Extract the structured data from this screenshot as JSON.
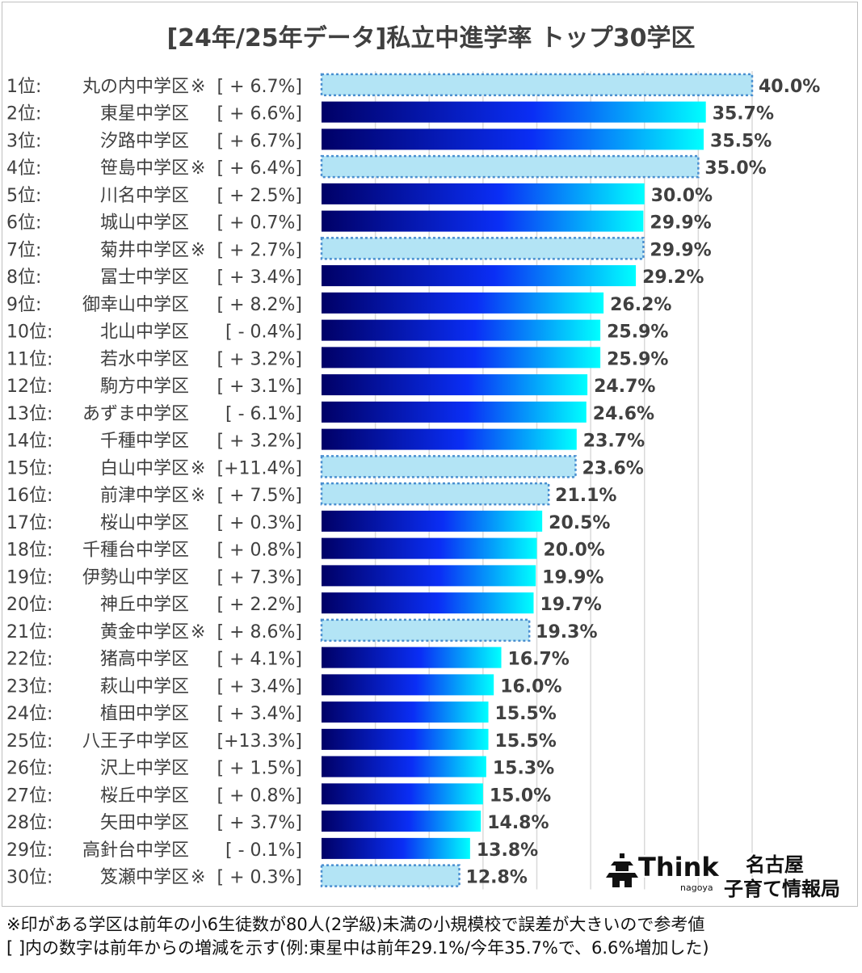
{
  "chart_data": {
    "type": "bar",
    "orientation": "horizontal",
    "title": "[24年/25年データ]私立中進学率 トップ30学区",
    "xlim": [
      0,
      40
    ],
    "grid": true,
    "value_suffix": "%",
    "rows": [
      {
        "rank": "1位:",
        "name": "丸の内中学区",
        "mark": "※",
        "change": "[ + 6.7%]",
        "value": 40.0,
        "small": true
      },
      {
        "rank": "2位:",
        "name": "東星中学区",
        "mark": "",
        "change": "[ + 6.6%]",
        "value": 35.7,
        "small": false
      },
      {
        "rank": "3位:",
        "name": "汐路中学区",
        "mark": "",
        "change": "[ + 6.7%]",
        "value": 35.5,
        "small": false
      },
      {
        "rank": "4位:",
        "name": "笹島中学区",
        "mark": "※",
        "change": "[ + 6.4%]",
        "value": 35.0,
        "small": true
      },
      {
        "rank": "5位:",
        "name": "川名中学区",
        "mark": "",
        "change": "[ + 2.5%]",
        "value": 30.0,
        "small": false
      },
      {
        "rank": "6位:",
        "name": "城山中学区",
        "mark": "",
        "change": "[ + 0.7%]",
        "value": 29.9,
        "small": false
      },
      {
        "rank": "7位:",
        "name": "菊井中学区",
        "mark": "※",
        "change": "[ + 2.7%]",
        "value": 29.9,
        "small": true
      },
      {
        "rank": "8位:",
        "name": "冨士中学区",
        "mark": "",
        "change": "[ + 3.4%]",
        "value": 29.2,
        "small": false
      },
      {
        "rank": "9位:",
        "name": "御幸山中学区",
        "mark": "",
        "change": "[ + 8.2%]",
        "value": 26.2,
        "small": false
      },
      {
        "rank": "10位:",
        "name": "北山中学区",
        "mark": "",
        "change": "[ -  0.4%]",
        "value": 25.9,
        "small": false
      },
      {
        "rank": "11位:",
        "name": "若水中学区",
        "mark": "",
        "change": "[ + 3.2%]",
        "value": 25.9,
        "small": false
      },
      {
        "rank": "12位:",
        "name": "駒方中学区",
        "mark": "",
        "change": "[ + 3.1%]",
        "value": 24.7,
        "small": false
      },
      {
        "rank": "13位:",
        "name": "あずま中学区",
        "mark": "",
        "change": "[ -  6.1%]",
        "value": 24.6,
        "small": false
      },
      {
        "rank": "14位:",
        "name": "千種中学区",
        "mark": "",
        "change": "[ + 3.2%]",
        "value": 23.7,
        "small": false
      },
      {
        "rank": "15位:",
        "name": "白山中学区",
        "mark": "※",
        "change": "[+11.4%]",
        "value": 23.6,
        "small": true
      },
      {
        "rank": "16位:",
        "name": "前津中学区",
        "mark": "※",
        "change": "[ + 7.5%]",
        "value": 21.1,
        "small": true
      },
      {
        "rank": "17位:",
        "name": "桜山中学区",
        "mark": "",
        "change": "[ + 0.3%]",
        "value": 20.5,
        "small": false
      },
      {
        "rank": "18位:",
        "name": "千種台中学区",
        "mark": "",
        "change": "[ + 0.8%]",
        "value": 20.0,
        "small": false
      },
      {
        "rank": "19位:",
        "name": "伊勢山中学区",
        "mark": "",
        "change": "[ + 7.3%]",
        "value": 19.9,
        "small": false
      },
      {
        "rank": "20位:",
        "name": "神丘中学区",
        "mark": "",
        "change": "[ + 2.2%]",
        "value": 19.7,
        "small": false
      },
      {
        "rank": "21位:",
        "name": "黄金中学区",
        "mark": "※",
        "change": "[ + 8.6%]",
        "value": 19.3,
        "small": true
      },
      {
        "rank": "22位:",
        "name": "猪高中学区",
        "mark": "",
        "change": "[ + 4.1%]",
        "value": 16.7,
        "small": false
      },
      {
        "rank": "23位:",
        "name": "萩山中学区",
        "mark": "",
        "change": "[ + 3.4%]",
        "value": 16.0,
        "small": false
      },
      {
        "rank": "24位:",
        "name": "植田中学区",
        "mark": "",
        "change": "[ + 3.4%]",
        "value": 15.5,
        "small": false
      },
      {
        "rank": "25位:",
        "name": "八王子中学区",
        "mark": "",
        "change": "[+13.3%]",
        "value": 15.5,
        "small": false
      },
      {
        "rank": "26位:",
        "name": "沢上中学区",
        "mark": "",
        "change": "[ + 1.5%]",
        "value": 15.3,
        "small": false
      },
      {
        "rank": "27位:",
        "name": "桜丘中学区",
        "mark": "",
        "change": "[ + 0.8%]",
        "value": 15.0,
        "small": false
      },
      {
        "rank": "28位:",
        "name": "矢田中学区",
        "mark": "",
        "change": "[ + 3.7%]",
        "value": 14.8,
        "small": false
      },
      {
        "rank": "29位:",
        "name": "高針台中学区",
        "mark": "",
        "change": "[ -  0.1%]",
        "value": 13.8,
        "small": false
      },
      {
        "rank": "30位:",
        "name": "笈瀬中学区",
        "mark": "※",
        "change": "[ + 0.3%]",
        "value": 12.8,
        "small": true
      }
    ]
  },
  "colors": {
    "gradient_start": "#000066",
    "gradient_mid": "#0a2ef5",
    "gradient_end": "#00ffff",
    "small_fill": "#b3e4f5",
    "small_border": "#4a8fd0",
    "grid": "#d9d9d9",
    "text": "#404040"
  },
  "footnotes": [
    "※印がある学区は前年の小6生徒数が80人(2学級)未満の小規模校で誤差が大きいので参考値",
    "[ ]内の数字は前年からの増減を示す(例:東星中は前年29.1%/今年35.7%で、6.6%増加した)"
  ],
  "logo": {
    "icon": "castle-icon",
    "brand": "Think",
    "brand_sub": "nagoya",
    "name_line1": "名古屋",
    "name_line2": "子育て情報局"
  }
}
